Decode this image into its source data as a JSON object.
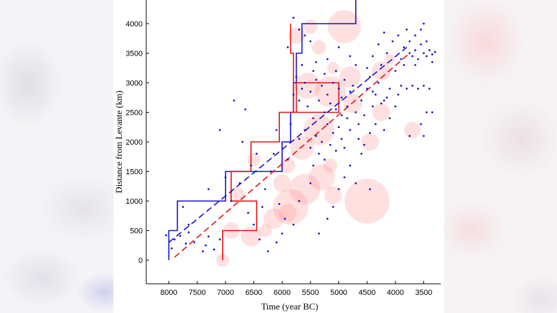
{
  "chart_data": {
    "type": "scatter",
    "title": "",
    "xlabel": "Time (year BC)",
    "ylabel": "Distance from Levante (km)",
    "xlim": [
      8400,
      3200
    ],
    "ylim": [
      -400,
      4400
    ],
    "x_reversed": true,
    "x_ticks": [
      8000,
      7500,
      7000,
      6500,
      6000,
      5500,
      5000,
      4500,
      4000,
      3500
    ],
    "x_tick_labels": [
      "8000",
      "7500",
      "7000",
      "6500",
      "6000",
      "5500",
      "5000",
      "4500",
      "4000",
      "3500"
    ],
    "y_ticks": [
      0,
      500,
      1000,
      1500,
      2000,
      2500,
      3000,
      3500,
      4000
    ],
    "y_tick_labels": [
      "0",
      "500",
      "1000",
      "1500",
      "2000",
      "2500",
      "3000",
      "3500",
      "4000"
    ],
    "colors": {
      "blue": "#1010c8",
      "red": "#e01010",
      "bubble": "#ff9090"
    },
    "series": [
      {
        "name": "blue-step",
        "style": "solid-step",
        "color": "#1010c8",
        "points": [
          [
            8000,
            0
          ],
          [
            8000,
            500
          ],
          [
            7850,
            500
          ],
          [
            7850,
            1000
          ],
          [
            7000,
            1000
          ],
          [
            7000,
            1500
          ],
          [
            6000,
            1500
          ],
          [
            6000,
            2000
          ],
          [
            5850,
            2000
          ],
          [
            5850,
            2500
          ],
          [
            5800,
            2500
          ],
          [
            5800,
            3000
          ],
          [
            5750,
            3000
          ],
          [
            5750,
            3500
          ],
          [
            5650,
            3500
          ],
          [
            5650,
            4000
          ],
          [
            4700,
            4000
          ],
          [
            4700,
            4400
          ]
        ]
      },
      {
        "name": "red-step",
        "style": "solid-step",
        "color": "#e01010",
        "points": [
          [
            7050,
            0
          ],
          [
            7050,
            500
          ],
          [
            6450,
            500
          ],
          [
            6450,
            1000
          ],
          [
            6900,
            1000
          ],
          [
            6900,
            1500
          ],
          [
            6550,
            1500
          ],
          [
            6550,
            2000
          ],
          [
            6050,
            2000
          ],
          [
            6050,
            2500
          ],
          [
            5750,
            2500
          ],
          [
            5750,
            3000
          ],
          [
            5000,
            3000
          ],
          [
            5000,
            2500
          ],
          [
            5800,
            2500
          ],
          [
            5800,
            3500
          ],
          [
            5850,
            3500
          ],
          [
            5850,
            4000
          ]
        ]
      },
      {
        "name": "blue-regression",
        "style": "dashed",
        "color": "#1010c8",
        "points": [
          [
            8000,
            300
          ],
          [
            3800,
            3600
          ]
        ]
      },
      {
        "name": "red-regression",
        "style": "dashed",
        "color": "#e01010",
        "points": [
          [
            7900,
            50
          ],
          [
            3750,
            3500
          ]
        ]
      }
    ],
    "bubbles": [
      {
        "x": 5500,
        "y": 3950,
        "r": 120
      },
      {
        "x": 4900,
        "y": 3950,
        "r": 280
      },
      {
        "x": 5750,
        "y": 3800,
        "r": 140
      },
      {
        "x": 5350,
        "y": 3600,
        "r": 120
      },
      {
        "x": 5100,
        "y": 3250,
        "r": 100
      },
      {
        "x": 4800,
        "y": 3100,
        "r": 180
      },
      {
        "x": 4250,
        "y": 3200,
        "r": 160
      },
      {
        "x": 4100,
        "y": 3400,
        "r": 90
      },
      {
        "x": 5150,
        "y": 2850,
        "r": 260
      },
      {
        "x": 5550,
        "y": 2950,
        "r": 220
      },
      {
        "x": 4750,
        "y": 2650,
        "r": 160
      },
      {
        "x": 4250,
        "y": 2500,
        "r": 150
      },
      {
        "x": 3700,
        "y": 2200,
        "r": 140
      },
      {
        "x": 4450,
        "y": 2000,
        "r": 150
      },
      {
        "x": 5350,
        "y": 2200,
        "r": 260
      },
      {
        "x": 5650,
        "y": 1900,
        "r": 200
      },
      {
        "x": 5900,
        "y": 1600,
        "r": 130
      },
      {
        "x": 5150,
        "y": 1600,
        "r": 120
      },
      {
        "x": 5300,
        "y": 1400,
        "r": 220
      },
      {
        "x": 6000,
        "y": 1300,
        "r": 150
      },
      {
        "x": 5600,
        "y": 1200,
        "r": 260
      },
      {
        "x": 5100,
        "y": 1100,
        "r": 150
      },
      {
        "x": 5850,
        "y": 900,
        "r": 300
      },
      {
        "x": 4500,
        "y": 1000,
        "r": 380
      },
      {
        "x": 5900,
        "y": 800,
        "r": 150
      },
      {
        "x": 6150,
        "y": 700,
        "r": 170
      },
      {
        "x": 6300,
        "y": 500,
        "r": 110
      },
      {
        "x": 6550,
        "y": 400,
        "r": 170
      },
      {
        "x": 6900,
        "y": 500,
        "r": 140
      },
      {
        "x": 7050,
        "y": 0,
        "r": 110
      },
      {
        "x": 6500,
        "y": 1700,
        "r": 110
      },
      {
        "x": 6800,
        "y": 1100,
        "r": 140
      }
    ],
    "points": [
      {
        "x": 8050,
        "y": 420
      },
      {
        "x": 7950,
        "y": 200
      },
      {
        "x": 7900,
        "y": 350
      },
      {
        "x": 7800,
        "y": 410
      },
      {
        "x": 7700,
        "y": 280
      },
      {
        "x": 7650,
        "y": 470
      },
      {
        "x": 7550,
        "y": 300
      },
      {
        "x": 7400,
        "y": 150
      },
      {
        "x": 7350,
        "y": 250
      },
      {
        "x": 7300,
        "y": 400
      },
      {
        "x": 7200,
        "y": 180
      },
      {
        "x": 7100,
        "y": 350
      },
      {
        "x": 7650,
        "y": 600
      },
      {
        "x": 7750,
        "y": 900
      },
      {
        "x": 7300,
        "y": 1200
      },
      {
        "x": 7100,
        "y": 2200
      },
      {
        "x": 6850,
        "y": 2700
      },
      {
        "x": 6650,
        "y": 2550
      },
      {
        "x": 7000,
        "y": 1400
      },
      {
        "x": 6900,
        "y": 1000
      },
      {
        "x": 6750,
        "y": 1300
      },
      {
        "x": 6600,
        "y": 800
      },
      {
        "x": 6500,
        "y": 600
      },
      {
        "x": 6400,
        "y": 350
      },
      {
        "x": 6300,
        "y": 1200
      },
      {
        "x": 6200,
        "y": 1500
      },
      {
        "x": 6150,
        "y": 1800
      },
      {
        "x": 6100,
        "y": 2200
      },
      {
        "x": 6050,
        "y": 950
      },
      {
        "x": 5950,
        "y": 700
      },
      {
        "x": 5900,
        "y": 1700
      },
      {
        "x": 5850,
        "y": 2300
      },
      {
        "x": 5800,
        "y": 2800
      },
      {
        "x": 5750,
        "y": 3100
      },
      {
        "x": 5700,
        "y": 2700
      },
      {
        "x": 5650,
        "y": 2900
      },
      {
        "x": 5600,
        "y": 3000
      },
      {
        "x": 5550,
        "y": 2600
      },
      {
        "x": 5500,
        "y": 2850
      },
      {
        "x": 5450,
        "y": 2400
      },
      {
        "x": 5400,
        "y": 3050
      },
      {
        "x": 5350,
        "y": 2700
      },
      {
        "x": 5300,
        "y": 2950
      },
      {
        "x": 5250,
        "y": 2500
      },
      {
        "x": 5200,
        "y": 2800
      },
      {
        "x": 5150,
        "y": 2650
      },
      {
        "x": 5100,
        "y": 3000
      },
      {
        "x": 5050,
        "y": 2550
      },
      {
        "x": 5000,
        "y": 2900
      },
      {
        "x": 4950,
        "y": 2750
      },
      {
        "x": 4900,
        "y": 3050
      },
      {
        "x": 4850,
        "y": 2600
      },
      {
        "x": 4800,
        "y": 2850
      },
      {
        "x": 4750,
        "y": 2950
      },
      {
        "x": 5700,
        "y": 2050
      },
      {
        "x": 5600,
        "y": 2200
      },
      {
        "x": 5500,
        "y": 1900
      },
      {
        "x": 5450,
        "y": 1600
      },
      {
        "x": 5400,
        "y": 2100
      },
      {
        "x": 5350,
        "y": 1800
      },
      {
        "x": 5300,
        "y": 2000
      },
      {
        "x": 5250,
        "y": 1700
      },
      {
        "x": 5200,
        "y": 2300
      },
      {
        "x": 5150,
        "y": 1950
      },
      {
        "x": 5100,
        "y": 2150
      },
      {
        "x": 5050,
        "y": 1850
      },
      {
        "x": 5000,
        "y": 2250
      },
      {
        "x": 4950,
        "y": 2050
      },
      {
        "x": 4900,
        "y": 1900
      },
      {
        "x": 4850,
        "y": 2400
      },
      {
        "x": 4800,
        "y": 2200
      },
      {
        "x": 4700,
        "y": 2500
      },
      {
        "x": 4650,
        "y": 2300
      },
      {
        "x": 4600,
        "y": 2700
      },
      {
        "x": 4550,
        "y": 2450
      },
      {
        "x": 4500,
        "y": 2900
      },
      {
        "x": 4450,
        "y": 3100
      },
      {
        "x": 4400,
        "y": 2600
      },
      {
        "x": 4350,
        "y": 2800
      },
      {
        "x": 4300,
        "y": 3000
      },
      {
        "x": 4250,
        "y": 3300
      },
      {
        "x": 4200,
        "y": 2700
      },
      {
        "x": 4150,
        "y": 3500
      },
      {
        "x": 4100,
        "y": 2900
      },
      {
        "x": 4050,
        "y": 3700
      },
      {
        "x": 4000,
        "y": 3200
      },
      {
        "x": 3950,
        "y": 3800
      },
      {
        "x": 3900,
        "y": 3400
      },
      {
        "x": 3850,
        "y": 3600
      },
      {
        "x": 3800,
        "y": 3900
      },
      {
        "x": 3750,
        "y": 3500
      },
      {
        "x": 3700,
        "y": 3450
      },
      {
        "x": 3650,
        "y": 3550
      },
      {
        "x": 3600,
        "y": 3400
      },
      {
        "x": 3550,
        "y": 3650
      },
      {
        "x": 3500,
        "y": 3500
      },
      {
        "x": 3450,
        "y": 3450
      },
      {
        "x": 3400,
        "y": 3550
      },
      {
        "x": 3350,
        "y": 3480
      },
      {
        "x": 3300,
        "y": 3520
      },
      {
        "x": 3650,
        "y": 3800
      },
      {
        "x": 3550,
        "y": 3900
      },
      {
        "x": 3500,
        "y": 4000
      },
      {
        "x": 3600,
        "y": 2900
      },
      {
        "x": 3500,
        "y": 2950
      },
      {
        "x": 3400,
        "y": 2900
      },
      {
        "x": 3700,
        "y": 2950
      },
      {
        "x": 3800,
        "y": 2900
      },
      {
        "x": 3900,
        "y": 2950
      },
      {
        "x": 3550,
        "y": 2300
      },
      {
        "x": 3450,
        "y": 2500
      },
      {
        "x": 3500,
        "y": 2100
      },
      {
        "x": 3750,
        "y": 2100
      },
      {
        "x": 3350,
        "y": 2500
      },
      {
        "x": 4000,
        "y": 2600
      },
      {
        "x": 4100,
        "y": 2400
      },
      {
        "x": 4200,
        "y": 2200
      },
      {
        "x": 4350,
        "y": 2300
      },
      {
        "x": 4450,
        "y": 2150
      },
      {
        "x": 4600,
        "y": 1800
      },
      {
        "x": 4800,
        "y": 1600
      },
      {
        "x": 4900,
        "y": 1400
      },
      {
        "x": 5000,
        "y": 1200
      },
      {
        "x": 5100,
        "y": 900
      },
      {
        "x": 5200,
        "y": 700
      },
      {
        "x": 5350,
        "y": 450
      },
      {
        "x": 4700,
        "y": 1300
      },
      {
        "x": 4450,
        "y": 1200
      },
      {
        "x": 5500,
        "y": 1300
      },
      {
        "x": 5700,
        "y": 1000
      },
      {
        "x": 5800,
        "y": 600
      },
      {
        "x": 6000,
        "y": 450
      },
      {
        "x": 6100,
        "y": 300
      },
      {
        "x": 6250,
        "y": 150
      },
      {
        "x": 6350,
        "y": 900
      },
      {
        "x": 6450,
        "y": 1800
      },
      {
        "x": 6700,
        "y": 2000
      },
      {
        "x": 6550,
        "y": 1600
      },
      {
        "x": 5600,
        "y": 3800
      },
      {
        "x": 5700,
        "y": 3900
      },
      {
        "x": 5500,
        "y": 3700
      },
      {
        "x": 5400,
        "y": 3350
      },
      {
        "x": 5200,
        "y": 3400
      },
      {
        "x": 5000,
        "y": 3600
      },
      {
        "x": 4800,
        "y": 3450
      },
      {
        "x": 4700,
        "y": 3300
      },
      {
        "x": 4500,
        "y": 3250
      },
      {
        "x": 4400,
        "y": 3450
      },
      {
        "x": 4300,
        "y": 3650
      },
      {
        "x": 4200,
        "y": 3850
      },
      {
        "x": 5900,
        "y": 3600
      },
      {
        "x": 5800,
        "y": 4100
      },
      {
        "x": 5650,
        "y": 3300
      },
      {
        "x": 5450,
        "y": 3200
      },
      {
        "x": 5250,
        "y": 3150
      },
      {
        "x": 5050,
        "y": 3200
      },
      {
        "x": 4950,
        "y": 2450
      },
      {
        "x": 4650,
        "y": 2050
      },
      {
        "x": 4550,
        "y": 1950
      },
      {
        "x": 4400,
        "y": 2850
      },
      {
        "x": 4250,
        "y": 2650
      },
      {
        "x": 4150,
        "y": 2750
      },
      {
        "x": 3950,
        "y": 2800
      },
      {
        "x": 3850,
        "y": 3300
      },
      {
        "x": 3750,
        "y": 3700
      },
      {
        "x": 3650,
        "y": 3300
      },
      {
        "x": 3450,
        "y": 3700
      },
      {
        "x": 3350,
        "y": 3350
      }
    ]
  }
}
